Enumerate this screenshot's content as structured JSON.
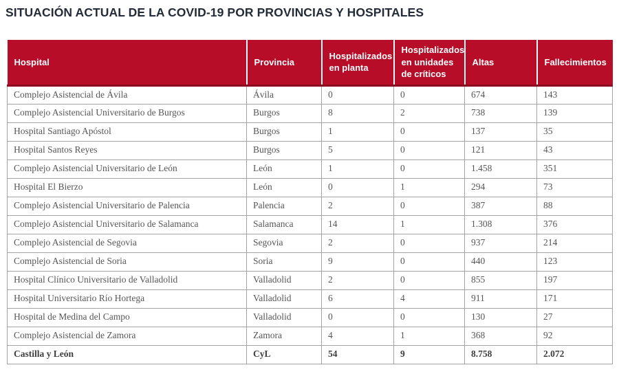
{
  "page": {
    "title": "SITUACIÓN ACTUAL DE LA COVID-19 POR PROVINCIAS Y HOSPITALES"
  },
  "colors": {
    "header_bg": "#b70d28",
    "header_border": "#8c0b22",
    "header_text": "#ffffff",
    "body_text": "#565656",
    "title_text": "#232c38",
    "cell_border": "#a3a3a3"
  },
  "chart_data": {
    "type": "table",
    "title": "SITUACIÓN ACTUAL DE LA COVID-19 POR PROVINCIAS Y HOSPITALES",
    "columns": [
      "Hospital",
      "Provincia",
      "Hospitalizados en planta",
      "Hospitalizados en unidades de críticos",
      "Altas",
      "Fallecimientos"
    ],
    "rows": [
      [
        "Complejo Asistencial de Ávila",
        "Ávila",
        "0",
        "0",
        "674",
        "143"
      ],
      [
        "Complejo Asistencial Universitario de Burgos",
        "Burgos",
        "8",
        "2",
        "738",
        "139"
      ],
      [
        "Hospital Santiago Apóstol",
        "Burgos",
        "1",
        "0",
        "137",
        "35"
      ],
      [
        "Hospital Santos Reyes",
        "Burgos",
        "5",
        "0",
        "121",
        "43"
      ],
      [
        "Complejo Asistencial Universitario de León",
        "León",
        "1",
        "0",
        "1.458",
        "351"
      ],
      [
        "Hospital El Bierzo",
        "León",
        "0",
        "1",
        "294",
        "73"
      ],
      [
        "Complejo Asistencial Universitario de Palencia",
        "Palencia",
        "2",
        "0",
        "387",
        "88"
      ],
      [
        "Complejo Asistencial Universitario de Salamanca",
        "Salamanca",
        "14",
        "1",
        "1.308",
        "376"
      ],
      [
        "Complejo Asistencial de Segovia",
        "Segovia",
        "2",
        "0",
        "937",
        "214"
      ],
      [
        "Complejo Asistencial de Soria",
        "Soria",
        "9",
        "0",
        "440",
        "123"
      ],
      [
        "Hospital Clínico Universitario de Valladolid",
        "Valladolid",
        "2",
        "0",
        "855",
        "197"
      ],
      [
        "Hospital Universitario Río Hortega",
        "Valladolid",
        "6",
        "4",
        "911",
        "171"
      ],
      [
        "Hospital de Medina del Campo",
        "Valladolid",
        "0",
        "0",
        "130",
        "27"
      ],
      [
        "Complejo Asistencial de Zamora",
        "Zamora",
        "4",
        "1",
        "368",
        "92"
      ]
    ],
    "total_row": [
      "Castilla y León",
      "CyL",
      "54",
      "9",
      "8.758",
      "2.072"
    ]
  }
}
